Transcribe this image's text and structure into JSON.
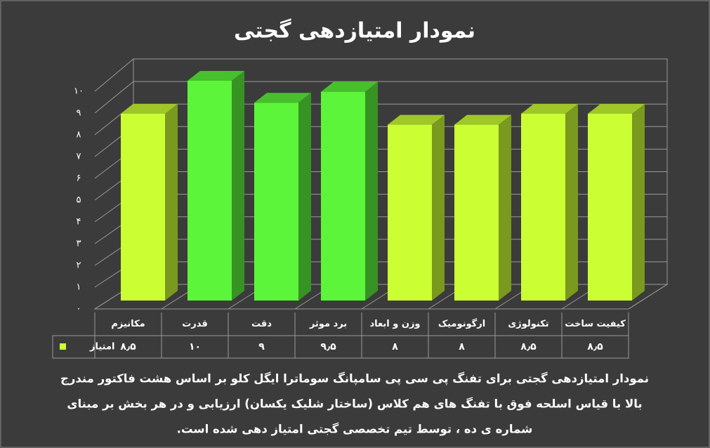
{
  "chart_data": {
    "type": "bar3d",
    "title": "نمودار امتیازدهی گجتی",
    "categories": [
      "مکانیزم",
      "قدرت",
      "دقت",
      "برد موثر",
      "وزن و ابعاد",
      "ارگونومیک",
      "تکنولوژی",
      "کیفیت ساخت"
    ],
    "series": [
      {
        "name": "امتیاز",
        "color": "#ccff33",
        "colors": [
          "#ccff33",
          "#5cf53a",
          "#5cf53a",
          "#5cf53a",
          "#ccff33",
          "#ccff33",
          "#ccff33",
          "#ccff33"
        ],
        "values": [
          8.5,
          10,
          9,
          9.5,
          8,
          8,
          8.5,
          8.5
        ],
        "value_labels": [
          "۸٫۵",
          "۱۰",
          "۹",
          "۹٫۵",
          "۸",
          "۸",
          "۸٫۵",
          "۸٫۵"
        ]
      }
    ],
    "ylim": [
      0,
      10
    ],
    "yticks": [
      {
        "value": 0,
        "label": "۰"
      },
      {
        "value": 1,
        "label": "۱"
      },
      {
        "value": 2,
        "label": "۲"
      },
      {
        "value": 3,
        "label": "۳"
      },
      {
        "value": 4,
        "label": "۴"
      },
      {
        "value": 5,
        "label": "۵"
      },
      {
        "value": 6,
        "label": "۶"
      },
      {
        "value": 7,
        "label": "۷"
      },
      {
        "value": 8,
        "label": "۸"
      },
      {
        "value": 9,
        "label": "۹"
      },
      {
        "value": 10,
        "label": "۱۰"
      }
    ],
    "grid": true,
    "caption": [
      "نمودار امتیازدهی گجتی برای تفنگ پی سی پی سامپانگ سوماترا ایگل کلو بر اساس هشت فاکتور مندرج",
      "بالا با قیاس اسلحه فوق با تفنگ های هم کلاس (ساختار شلیک یکسان) ارزیابی و در هر بخش بر مبنای",
      "شماره ی ده ، توسط تیم تخصصی گجتی امتیاز دهی شده است."
    ]
  }
}
